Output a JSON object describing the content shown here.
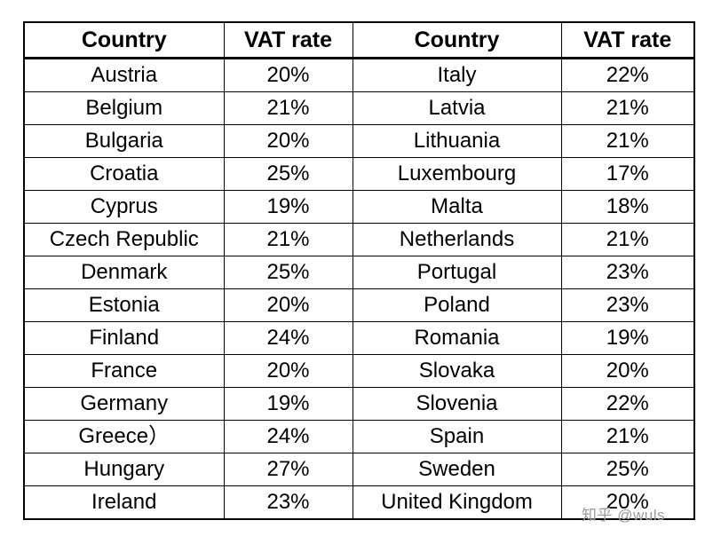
{
  "chart_data": {
    "type": "table",
    "columns": [
      "Country",
      "VAT rate",
      "Country",
      "VAT rate"
    ],
    "rows": [
      [
        "Austria",
        "20%",
        "Italy",
        "22%"
      ],
      [
        "Belgium",
        "21%",
        "Latvia",
        "21%"
      ],
      [
        "Bulgaria",
        "20%",
        "Lithuania",
        "21%"
      ],
      [
        "Croatia",
        "25%",
        "Luxembourg",
        "17%"
      ],
      [
        "Cyprus",
        "19%",
        "Malta",
        "18%"
      ],
      [
        "Czech Republic",
        "21%",
        "Netherlands",
        "21%"
      ],
      [
        "Denmark",
        "25%",
        "Portugal",
        "23%"
      ],
      [
        "Estonia",
        "20%",
        "Poland",
        "23%"
      ],
      [
        "Finland",
        "24%",
        "Romania",
        "19%"
      ],
      [
        "France",
        "20%",
        "Slovaka",
        "20%"
      ],
      [
        "Germany",
        "19%",
        "Slovenia",
        "22%"
      ],
      [
        "Greece）",
        "24%",
        "Spain",
        "21%"
      ],
      [
        "Hungary",
        "27%",
        "Sweden",
        "25%"
      ],
      [
        "Ireland",
        "23%",
        "United Kingdom",
        "20%"
      ]
    ],
    "colors": {
      "border": "#000000",
      "background": "#ffffff",
      "watermark_gray": "#9a9a9a"
    }
  },
  "watermark": "知乎 @wuls"
}
